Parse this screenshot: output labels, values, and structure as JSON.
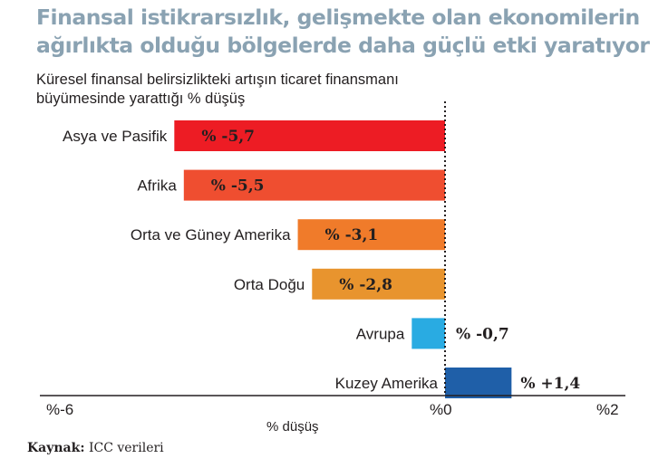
{
  "chart_data": {
    "type": "bar",
    "orientation": "horizontal",
    "title": "Finansal istikrarsızlık, gelişmekte olan ekonomilerin ağırlıkta olduğu bölgelerde daha güçlü etki yaratıyor",
    "subtitle": "Küresel finansal belirsizlikteki artışın ticaret finansmanı büyümesinde yarattığı % düşüş",
    "categories": [
      "Asya ve Pasifik",
      "Afrika",
      "Orta ve Güney Amerika",
      "Orta Doğu",
      "Avrupa",
      "Kuzey Amerika"
    ],
    "values": [
      -5.7,
      -5.5,
      -3.1,
      -2.8,
      -0.7,
      1.4
    ],
    "value_labels": [
      "% -5,7",
      "% -5,5",
      "% -3,1",
      "% -2,8",
      "% -0,7",
      "% +1,4"
    ],
    "colors": [
      "#ed1c24",
      "#ef4e30",
      "#f07b2a",
      "#e8942e",
      "#29abe2",
      "#1f5fa8"
    ],
    "xlim": [
      -6,
      2
    ],
    "xticks": [
      -6,
      0,
      2
    ],
    "xtick_labels": [
      "%-6",
      "%0",
      "%2"
    ],
    "xlabel": "% düşüş",
    "zero_line": "dotted",
    "grid": false,
    "legend": "none"
  },
  "source": {
    "label": "Kaynak:",
    "text": "ICC verileri"
  }
}
